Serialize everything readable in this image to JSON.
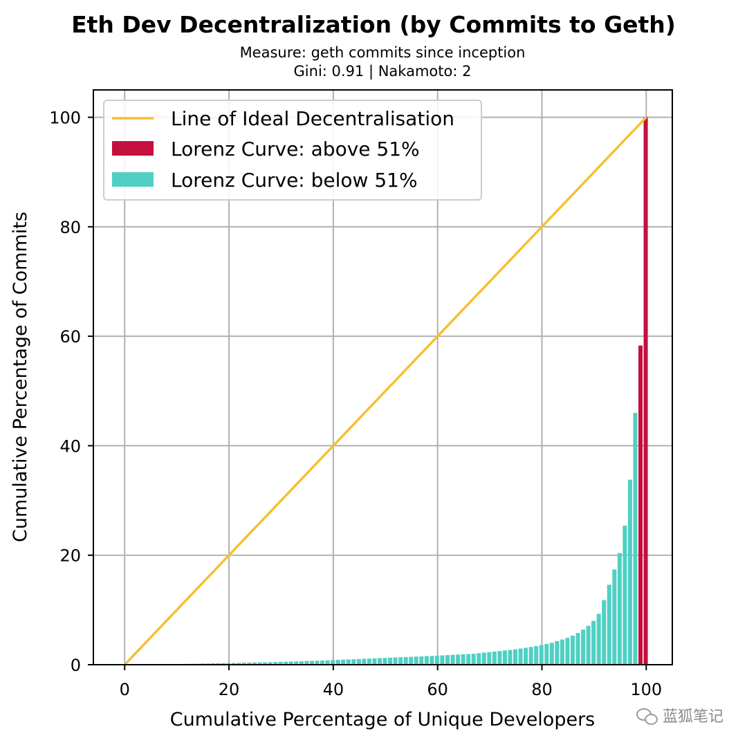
{
  "chart_data": {
    "type": "bar",
    "title": "Eth Dev Decentralization (by Commits to Geth)",
    "subtitle_lines": [
      "Measure: geth commits since inception",
      "Gini: 0.91 | Nakamoto: 2"
    ],
    "xlabel": "Cumulative Percentage of Unique Developers",
    "ylabel": "Cumulative Percentage of Commits",
    "xlim": [
      -6,
      105
    ],
    "ylim": [
      0,
      105
    ],
    "xticks": [
      0,
      20,
      40,
      60,
      80,
      100
    ],
    "yticks": [
      0,
      20,
      40,
      60,
      80,
      100
    ],
    "xtick_labels": [
      "0",
      "20",
      "40",
      "60",
      "80",
      "100"
    ],
    "ytick_labels": [
      "0",
      "20",
      "40",
      "60",
      "80",
      "100"
    ],
    "grid": true,
    "legend_position": "upper-left",
    "colors": {
      "ideal_line": "#f5c030",
      "above": "#c3103e",
      "below": "#4fd0c3"
    },
    "ideal_line": {
      "name": "Line of Ideal Decentralisation",
      "x": [
        0,
        100
      ],
      "y": [
        0,
        100
      ]
    },
    "series": [
      {
        "name": "Lorenz Curve: below 51%",
        "x": [
          8.9,
          9.9,
          10.9,
          11.9,
          12.9,
          13.9,
          14.9,
          15.9,
          16.9,
          17.9,
          18.9,
          19.9,
          20.9,
          21.9,
          22.9,
          23.9,
          24.9,
          25.9,
          26.9,
          27.9,
          28.9,
          29.9,
          30.9,
          31.9,
          32.9,
          33.9,
          34.9,
          35.9,
          36.9,
          37.9,
          38.9,
          39.9,
          40.9,
          41.9,
          42.9,
          43.9,
          44.9,
          45.9,
          46.9,
          47.9,
          48.9,
          49.9,
          50.9,
          51.9,
          52.9,
          53.9,
          54.9,
          55.9,
          56.9,
          57.9,
          58.9,
          59.9,
          60.9,
          61.9,
          62.9,
          63.9,
          64.9,
          65.9,
          66.9,
          67.9,
          68.9,
          69.9,
          70.9,
          71.9,
          72.9,
          73.9,
          74.9,
          75.9,
          76.9,
          77.9,
          78.9,
          79.9,
          80.9,
          81.9,
          82.9,
          83.9,
          84.9,
          85.9,
          86.9,
          87.9,
          88.9,
          89.9,
          90.9,
          91.9,
          92.9,
          93.9,
          94.9,
          95.9,
          96.9,
          97.9
        ],
        "values": [
          0.1,
          0.1,
          0.12,
          0.14,
          0.16,
          0.18,
          0.2,
          0.22,
          0.24,
          0.26,
          0.28,
          0.3,
          0.32,
          0.34,
          0.36,
          0.38,
          0.4,
          0.42,
          0.44,
          0.46,
          0.49,
          0.52,
          0.55,
          0.58,
          0.61,
          0.64,
          0.67,
          0.7,
          0.73,
          0.76,
          0.8,
          0.84,
          0.88,
          0.92,
          0.96,
          1.0,
          1.04,
          1.08,
          1.12,
          1.16,
          1.2,
          1.24,
          1.28,
          1.32,
          1.36,
          1.4,
          1.44,
          1.48,
          1.52,
          1.56,
          1.6,
          1.65,
          1.7,
          1.75,
          1.8,
          1.85,
          1.9,
          1.95,
          2.0,
          2.1,
          2.2,
          2.3,
          2.4,
          2.5,
          2.6,
          2.7,
          2.8,
          2.95,
          3.1,
          3.25,
          3.4,
          3.6,
          3.8,
          4.0,
          4.3,
          4.6,
          4.9,
          5.3,
          5.8,
          6.4,
          7.1,
          8.0,
          9.3,
          11.8,
          14.6,
          17.4,
          20.4,
          25.4,
          33.8,
          46.0
        ]
      },
      {
        "name": "Lorenz Curve: above 51%",
        "x": [
          98.9,
          99.9
        ],
        "values": [
          58.3,
          100
        ]
      }
    ]
  },
  "watermark": {
    "text": "蓝狐笔记"
  }
}
